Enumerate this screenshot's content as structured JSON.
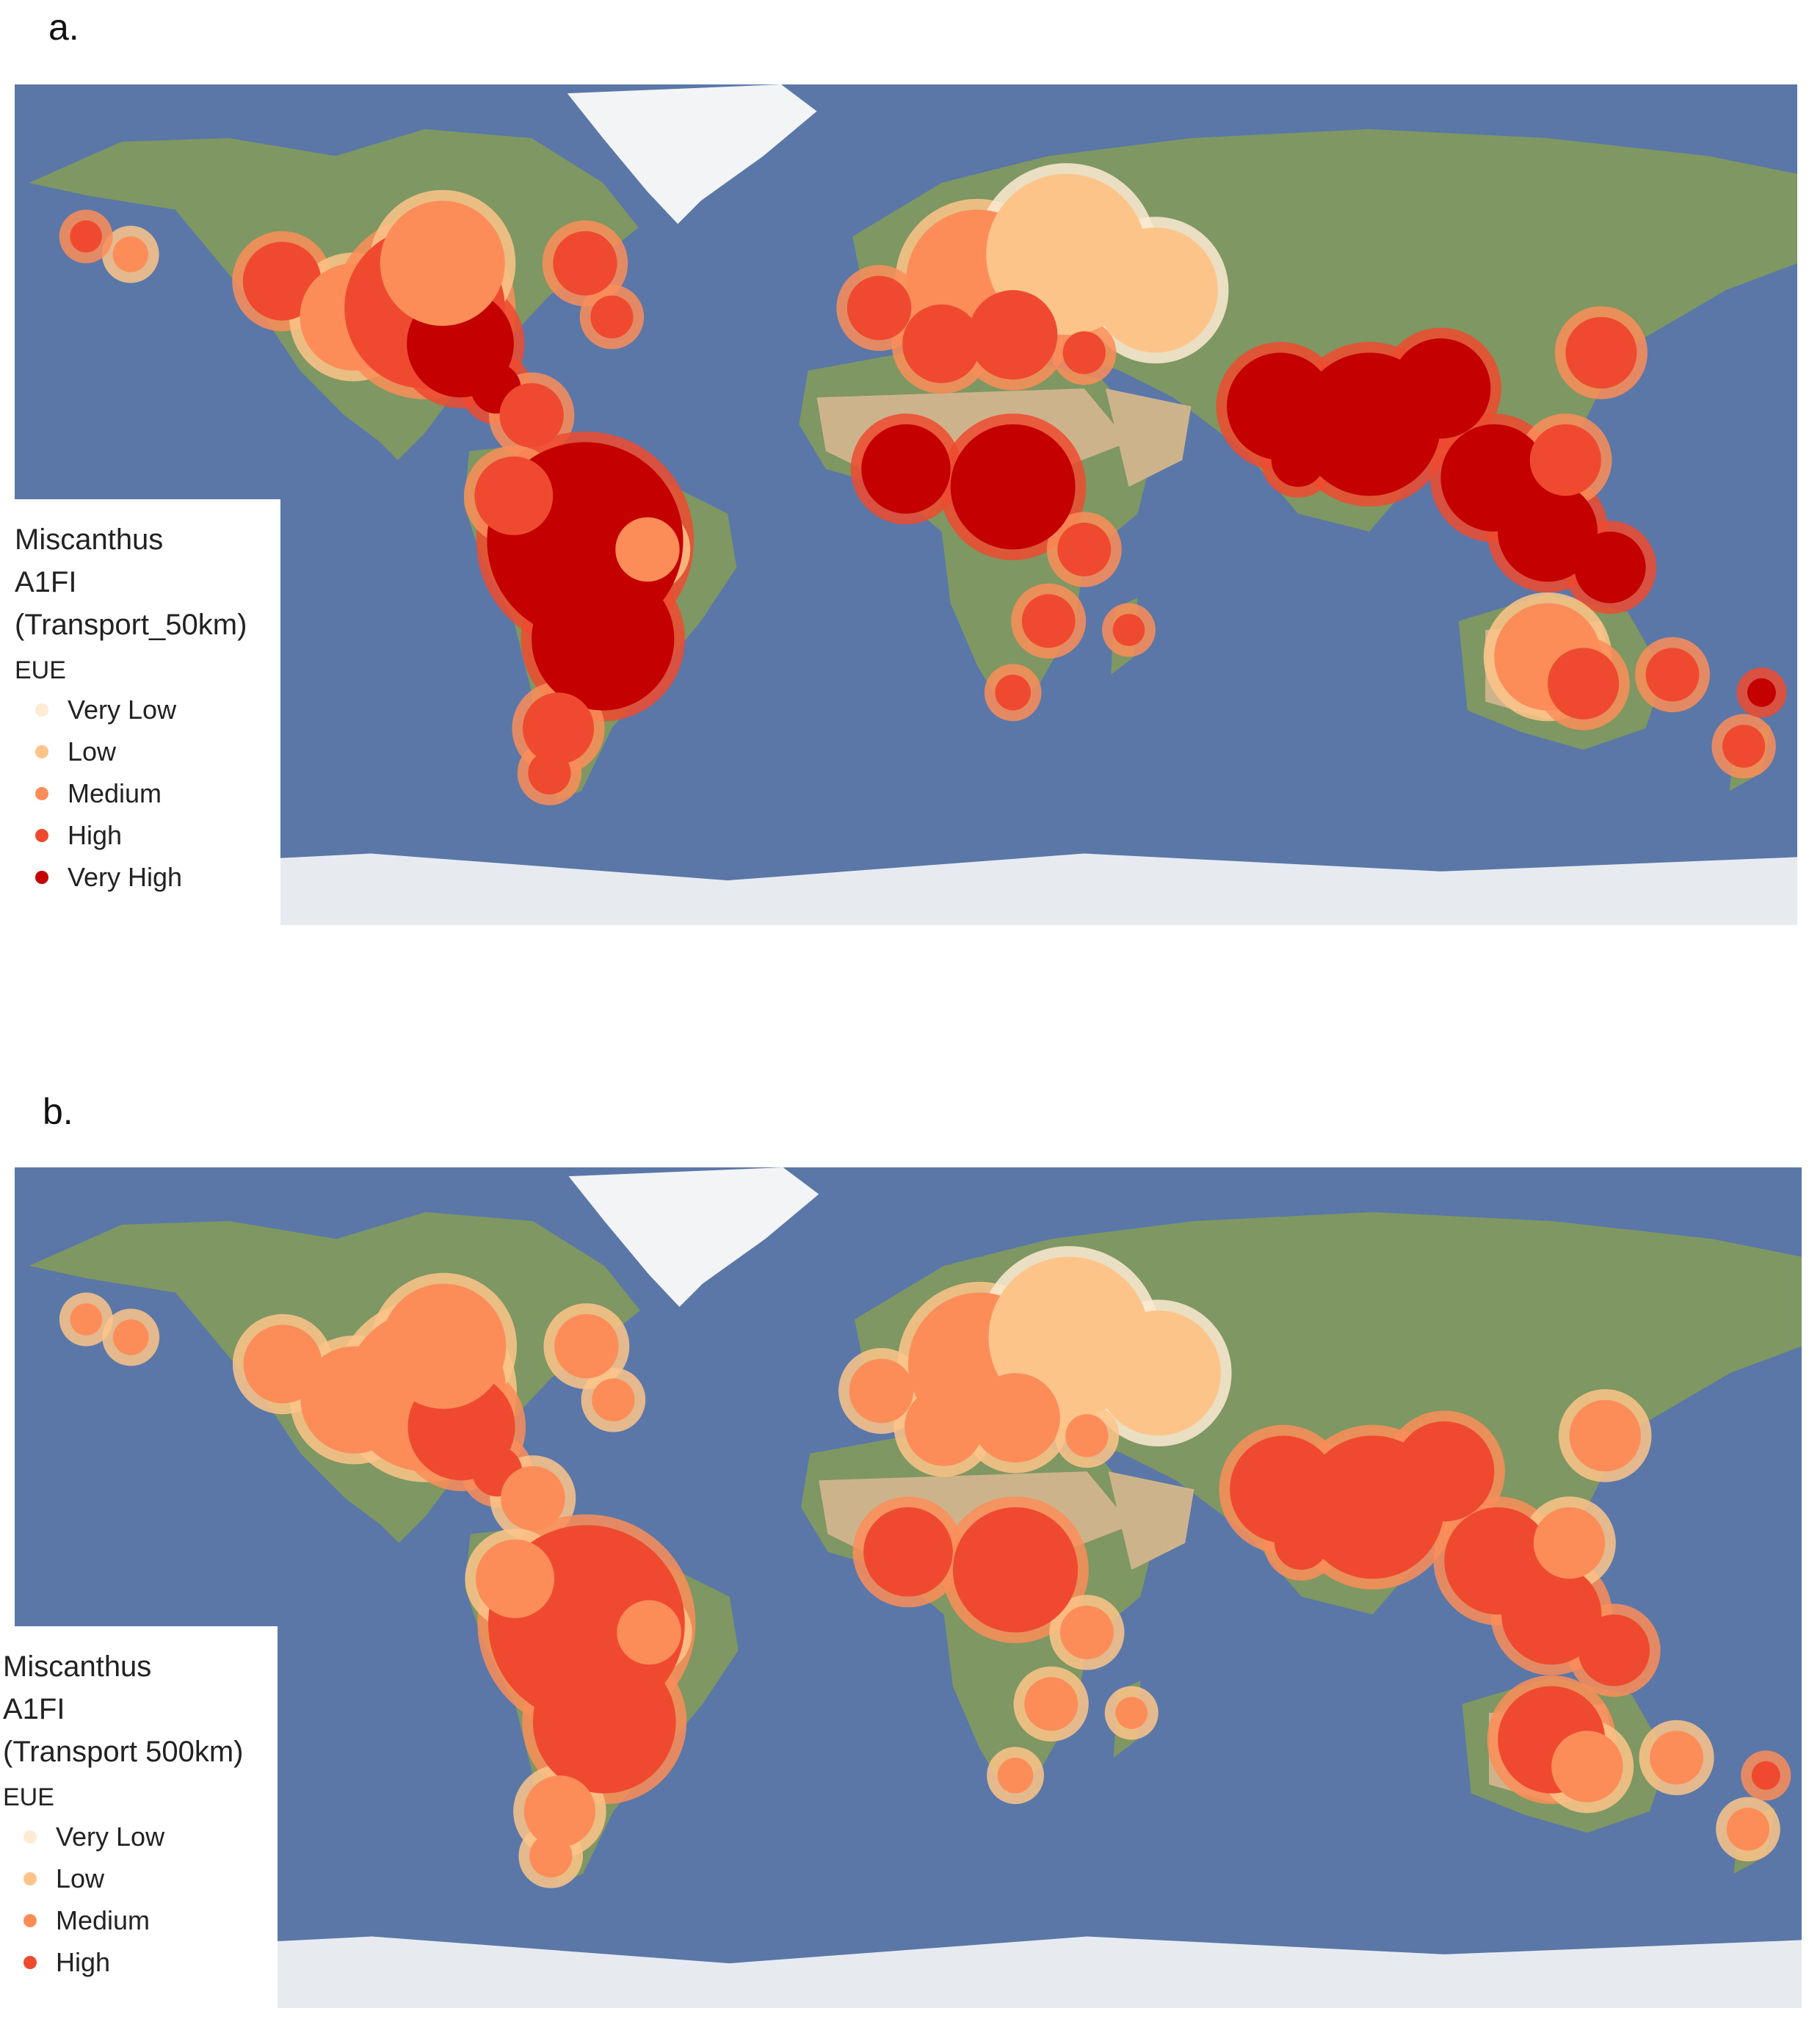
{
  "panels": [
    {
      "label": "a.",
      "legend": {
        "title_lines": [
          "Miscanthus",
          "A1FI",
          "(Transport_50km)"
        ],
        "field": "EUE",
        "items": [
          {
            "label": "Very Low",
            "color": "#fdebd4"
          },
          {
            "label": "Low",
            "color": "#fdc48a"
          },
          {
            "label": "Medium",
            "color": "#fc8d59"
          },
          {
            "label": "High",
            "color": "#ef4a2f"
          },
          {
            "label": "Very High",
            "color": "#c40000"
          }
        ]
      }
    },
    {
      "label": "b.",
      "legend": {
        "title_lines": [
          "Miscanthus",
          "A1FI",
          "(Transport 500km)"
        ],
        "field": "EUE",
        "items": [
          {
            "label": "Very Low",
            "color": "#fdebd4"
          },
          {
            "label": "Low",
            "color": "#fdc48a"
          },
          {
            "label": "Medium",
            "color": "#fc8d59"
          },
          {
            "label": "High",
            "color": "#ef4a2f"
          }
        ]
      }
    }
  ],
  "colors": {
    "ocean": "#5a77a8",
    "land": "#7f9762",
    "desert": "#cdb38c",
    "ice": "#e7ebf0",
    "greenland": "#f3f4f6"
  }
}
